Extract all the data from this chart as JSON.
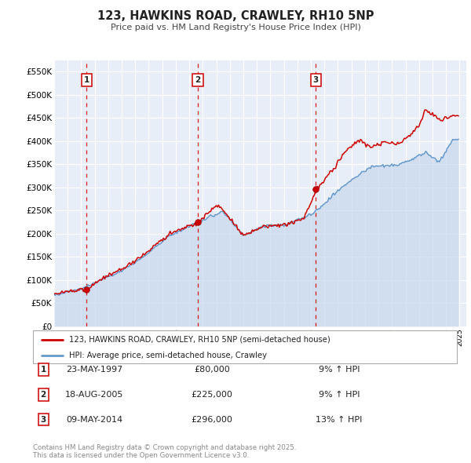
{
  "title": "123, HAWKINS ROAD, CRAWLEY, RH10 5NP",
  "subtitle": "Price paid vs. HM Land Registry's House Price Index (HPI)",
  "background_color": "#ffffff",
  "chart_bg_color": "#e8eef8",
  "grid_color": "#ffffff",
  "ylim": [
    0,
    575000
  ],
  "yticks": [
    0,
    50000,
    100000,
    150000,
    200000,
    250000,
    300000,
    350000,
    400000,
    450000,
    500000,
    550000
  ],
  "ytick_labels": [
    "£0",
    "£50K",
    "£100K",
    "£150K",
    "£200K",
    "£250K",
    "£300K",
    "£350K",
    "£400K",
    "£450K",
    "£500K",
    "£550K"
  ],
  "xlim_start": 1995.0,
  "xlim_end": 2025.5,
  "xticks": [
    1995,
    1996,
    1997,
    1998,
    1999,
    2000,
    2001,
    2002,
    2003,
    2004,
    2005,
    2006,
    2007,
    2008,
    2009,
    2010,
    2011,
    2012,
    2013,
    2014,
    2015,
    2016,
    2017,
    2018,
    2019,
    2020,
    2021,
    2022,
    2023,
    2024,
    2025
  ],
  "sale_dates": [
    1997.39,
    2005.63,
    2014.36
  ],
  "sale_prices": [
    80000,
    225000,
    296000
  ],
  "sale_labels": [
    "1",
    "2",
    "3"
  ],
  "vline_color": "#dd0000",
  "sale_marker_color": "#cc0000",
  "red_line_color": "#cc0000",
  "blue_line_color": "#6699cc",
  "blue_fill_color": "#c8d8ee",
  "legend_label_red": "123, HAWKINS ROAD, CRAWLEY, RH10 5NP (semi-detached house)",
  "legend_label_blue": "HPI: Average price, semi-detached house, Crawley",
  "table_rows": [
    {
      "label": "1",
      "date": "23-MAY-1997",
      "price": "£80,000",
      "change": "9% ↑ HPI"
    },
    {
      "label": "2",
      "date": "18-AUG-2005",
      "price": "£225,000",
      "change": "9% ↑ HPI"
    },
    {
      "label": "3",
      "date": "09-MAY-2014",
      "price": "£296,000",
      "change": "13% ↑ HPI"
    }
  ],
  "footer": "Contains HM Land Registry data © Crown copyright and database right 2025.\nThis data is licensed under the Open Government Licence v3.0."
}
